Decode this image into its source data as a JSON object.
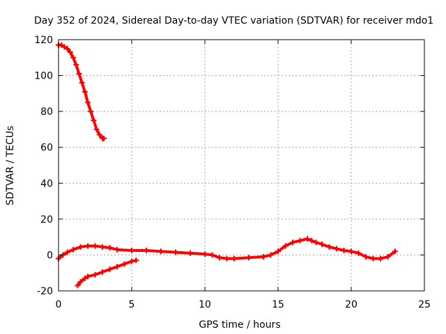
{
  "chart_data": {
    "type": "scatter",
    "title": "Day 352 of 2024, Sidereal Day-to-day VTEC variation (SDTVAR) for receiver mdo1",
    "xlabel": "GPS time / hours",
    "ylabel": "SDTVAR / TECUs",
    "xlim": [
      0,
      25
    ],
    "ylim": [
      -20,
      120
    ],
    "xticks": [
      0,
      5,
      10,
      15,
      20,
      25
    ],
    "yticks": [
      -20,
      0,
      20,
      40,
      60,
      80,
      100,
      120
    ],
    "grid": true,
    "marker": "plus",
    "series_color": "#ff0000",
    "series": [
      {
        "name": "decreasing-arc",
        "x": [
          0.0,
          0.2,
          0.4,
          0.6,
          0.8,
          1.0,
          1.2,
          1.4,
          1.6,
          1.8,
          2.0,
          2.2,
          2.4,
          2.6,
          2.8,
          3.0,
          3.1
        ],
        "y": [
          117,
          117,
          116,
          115,
          113,
          110,
          106,
          101,
          96,
          91,
          85,
          80,
          75,
          70,
          67,
          65,
          65
        ]
      },
      {
        "name": "rising-arc",
        "x": [
          1.3,
          1.5,
          1.8,
          2.0,
          2.5,
          3.0,
          3.5,
          4.0,
          4.5,
          5.0,
          5.3
        ],
        "y": [
          -17,
          -15,
          -13,
          -12,
          -11,
          -9.5,
          -8,
          -6.5,
          -5,
          -3.5,
          -3
        ]
      },
      {
        "name": "main-trace",
        "x": [
          0.0,
          0.3,
          0.6,
          1.0,
          1.5,
          2.0,
          2.5,
          3.0,
          3.5,
          4.0,
          5.0,
          6.0,
          7.0,
          8.0,
          9.0,
          10.0,
          10.5,
          11.0,
          11.5,
          12.0,
          13.0,
          14.0,
          14.5,
          15.0,
          15.5,
          16.0,
          16.5,
          17.0,
          17.3,
          17.6,
          18.0,
          18.5,
          19.0,
          19.5,
          20.0,
          20.5,
          21.0,
          21.5,
          22.0,
          22.5,
          23.0
        ],
        "y": [
          -2,
          0,
          1.5,
          3,
          4.5,
          5,
          5,
          4.5,
          4,
          3,
          2.5,
          2.5,
          2,
          1.5,
          1,
          0.5,
          0,
          -1.5,
          -2,
          -2,
          -1.5,
          -1,
          0,
          2,
          5,
          7,
          8,
          9,
          8,
          7,
          6,
          4.5,
          3.5,
          2.5,
          2,
          1,
          -1,
          -2,
          -2,
          -1,
          2
        ]
      }
    ]
  }
}
